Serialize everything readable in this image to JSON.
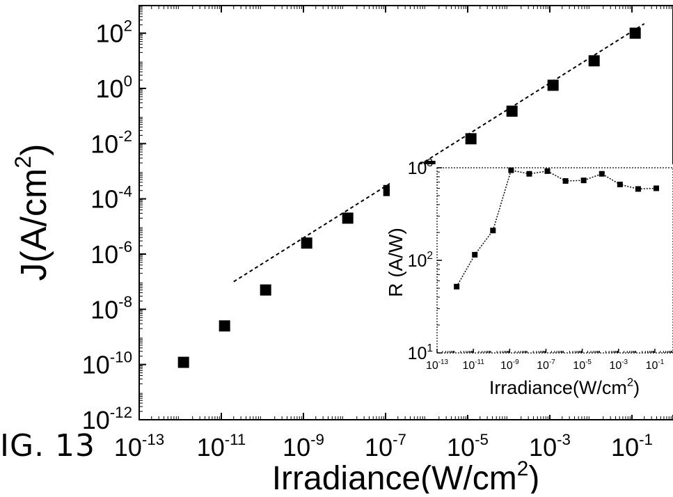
{
  "figure": {
    "caption": "IG. 13"
  },
  "chart_data": [
    {
      "type": "scatter",
      "xlabel_main": "Irradiance(W/cm",
      "xlabel_sup": "2",
      "xlabel_tail": ")",
      "ylabel_main": "J(A/cm",
      "ylabel_sup": "2",
      "ylabel_tail": ")",
      "x_scale": "log",
      "y_scale": "log",
      "xlim": [
        1e-13,
        1
      ],
      "ylim": [
        1e-12,
        1000
      ],
      "x_ticks": [
        {
          "base": "10",
          "exp": "-13",
          "value": 1e-13
        },
        {
          "base": "10",
          "exp": "-11",
          "value": 1e-11
        },
        {
          "base": "10",
          "exp": "-9",
          "value": 1e-09
        },
        {
          "base": "10",
          "exp": "-7",
          "value": 1e-07
        },
        {
          "base": "10",
          "exp": "-5",
          "value": 1e-05
        },
        {
          "base": "10",
          "exp": "-3",
          "value": 0.001
        },
        {
          "base": "10",
          "exp": "-1",
          "value": 0.1
        }
      ],
      "y_ticks": [
        {
          "base": "10",
          "exp": "-12",
          "value": 1e-12
        },
        {
          "base": "10",
          "exp": "-10",
          "value": 1e-10
        },
        {
          "base": "10",
          "exp": "-8",
          "value": 1e-08
        },
        {
          "base": "10",
          "exp": "-6",
          "value": 1e-06
        },
        {
          "base": "10",
          "exp": "-4",
          "value": 0.0001
        },
        {
          "base": "10",
          "exp": "-2",
          "value": 0.01
        },
        {
          "base": "10",
          "exp": "0",
          "value": 1
        },
        {
          "base": "10",
          "exp": "2",
          "value": 100
        }
      ],
      "series": [
        {
          "marker": "filled-square",
          "points": [
            {
              "x": 1.2e-12,
              "y": 1.2e-10
            },
            {
              "x": 1.2e-11,
              "y": 2.5e-09
            },
            {
              "x": 1.2e-10,
              "y": 5e-08
            },
            {
              "x": 1.2e-09,
              "y": 2.5e-06
            },
            {
              "x": 1.2e-08,
              "y": 2e-05
            },
            {
              "x": 1.2e-07,
              "y": 0.0002
            },
            {
              "x": 1.2e-06,
              "y": 0.0015
            },
            {
              "x": 1.2e-05,
              "y": 0.015
            },
            {
              "x": 0.00012,
              "y": 0.15
            },
            {
              "x": 0.0012,
              "y": 1.3
            },
            {
              "x": 0.012,
              "y": 10
            },
            {
              "x": 0.12,
              "y": 100
            }
          ]
        }
      ],
      "fit_line": {
        "style": "dashed",
        "from": {
          "x": 2e-11,
          "y": 1e-07
        },
        "to": {
          "x": 0.2,
          "y": 220
        }
      },
      "grid": false
    },
    {
      "type": "line",
      "role": "inset",
      "xlabel_main": "Irradiance(W/cm",
      "xlabel_sup": "2",
      "xlabel_tail": ")",
      "ylabel": "R (A/W)",
      "x_scale": "log",
      "y_scale": "log",
      "xlim": [
        1e-13,
        1
      ],
      "ylim": [
        10,
        1000
      ],
      "x_ticks": [
        {
          "base": "10",
          "exp": "-13",
          "value": 1e-13
        },
        {
          "base": "10",
          "exp": "-11",
          "value": 1e-11
        },
        {
          "base": "10",
          "exp": "-9",
          "value": 1e-09
        },
        {
          "base": "10",
          "exp": "-7",
          "value": 1e-07
        },
        {
          "base": "10",
          "exp": "-5",
          "value": 1e-05
        },
        {
          "base": "10",
          "exp": "-3",
          "value": 0.001
        },
        {
          "base": "10",
          "exp": "-1",
          "value": 0.1
        }
      ],
      "y_ticks": [
        {
          "base": "10",
          "exp": "1",
          "value": 10
        },
        {
          "base": "10",
          "exp": "2",
          "value": 100
        },
        {
          "base": "10",
          "exp": "3",
          "value": 1000
        }
      ],
      "series": [
        {
          "marker": "filled-square",
          "line_style": "dotted",
          "points": [
            {
              "x": 1.2e-12,
              "y": 52
            },
            {
              "x": 1.2e-11,
              "y": 115
            },
            {
              "x": 1.2e-10,
              "y": 210
            },
            {
              "x": 1.2e-09,
              "y": 940
            },
            {
              "x": 1.2e-08,
              "y": 860
            },
            {
              "x": 1.2e-07,
              "y": 920
            },
            {
              "x": 1.2e-06,
              "y": 720
            },
            {
              "x": 1.2e-05,
              "y": 730
            },
            {
              "x": 0.00012,
              "y": 860
            },
            {
              "x": 0.0012,
              "y": 660
            },
            {
              "x": 0.012,
              "y": 590
            },
            {
              "x": 0.12,
              "y": 600
            }
          ]
        }
      ],
      "grid": false
    }
  ]
}
